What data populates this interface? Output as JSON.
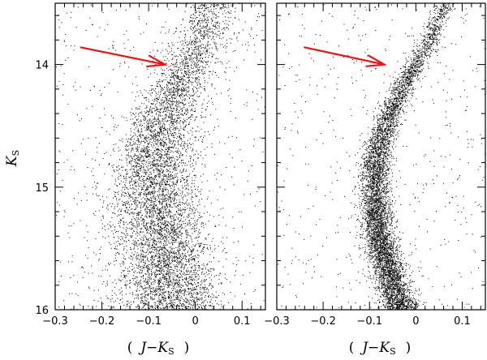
{
  "chart_data": [
    {
      "type": "scatter",
      "panel": "left",
      "title": "",
      "xlabel_parts": {
        "open": "(",
        "var_j": "J",
        "minus": "−",
        "var_k": "K",
        "sub": "S",
        "close": ")"
      },
      "ylabel_parts": {
        "var_k": "K",
        "sub": "S"
      },
      "xlim": [
        -0.3,
        0.15
      ],
      "ylim": [
        16,
        13.5
      ],
      "y_inverted": true,
      "x_ticks": [
        "−0.3",
        "−0.2",
        "−0.1",
        "0",
        "0.1"
      ],
      "y_ticks": [
        "14",
        "15",
        "16"
      ],
      "grid": false,
      "annotation": {
        "type": "arrow",
        "color": "#ee1111",
        "from": [
          -0.245,
          13.86
        ],
        "to": [
          -0.065,
          14.0
        ]
      },
      "sequence": [
        {
          "y": 13.5,
          "x": 0.04,
          "sd": 0.025
        },
        {
          "y": 13.8,
          "x": 0.015,
          "sd": 0.028
        },
        {
          "y": 14.0,
          "x": -0.015,
          "sd": 0.03
        },
        {
          "y": 14.2,
          "x": -0.04,
          "sd": 0.033
        },
        {
          "y": 14.4,
          "x": -0.062,
          "sd": 0.037
        },
        {
          "y": 14.6,
          "x": -0.08,
          "sd": 0.04
        },
        {
          "y": 14.8,
          "x": -0.085,
          "sd": 0.043
        },
        {
          "y": 15.0,
          "x": -0.085,
          "sd": 0.045
        },
        {
          "y": 15.2,
          "x": -0.08,
          "sd": 0.047
        },
        {
          "y": 15.4,
          "x": -0.073,
          "sd": 0.05
        },
        {
          "y": 15.6,
          "x": -0.065,
          "sd": 0.052
        },
        {
          "y": 15.8,
          "x": -0.055,
          "sd": 0.055
        },
        {
          "y": 16.0,
          "x": -0.045,
          "sd": 0.058
        }
      ],
      "density": [
        {
          "y": 13.5,
          "w": 0.35
        },
        {
          "y": 14.0,
          "w": 0.6
        },
        {
          "y": 14.5,
          "w": 0.9
        },
        {
          "y": 15.0,
          "w": 1.15
        },
        {
          "y": 15.5,
          "w": 1.3
        },
        {
          "y": 16.0,
          "w": 1.4
        }
      ],
      "n_points": 7000,
      "field_fraction": 0.06
    },
    {
      "type": "scatter",
      "panel": "right",
      "title": "",
      "xlabel_parts": {
        "open": "(",
        "var_j": "J",
        "minus": "−",
        "var_k": "K",
        "sub": "S",
        "close": ")"
      },
      "xlim": [
        -0.3,
        0.15
      ],
      "ylim": [
        16,
        13.5
      ],
      "y_inverted": true,
      "x_ticks": [
        "−0.3",
        "−0.2",
        "−0.1",
        "0",
        "0.1"
      ],
      "grid": false,
      "annotation": {
        "type": "arrow",
        "color": "#ee1111",
        "from": [
          -0.24,
          13.86
        ],
        "to": [
          -0.068,
          14.0
        ]
      },
      "sequence": [
        {
          "y": 13.5,
          "x": 0.065,
          "sd": 0.01
        },
        {
          "y": 13.8,
          "x": 0.03,
          "sd": 0.011
        },
        {
          "y": 14.0,
          "x": 0.0,
          "sd": 0.012
        },
        {
          "y": 14.2,
          "x": -0.03,
          "sd": 0.013
        },
        {
          "y": 14.4,
          "x": -0.055,
          "sd": 0.014
        },
        {
          "y": 14.6,
          "x": -0.075,
          "sd": 0.015
        },
        {
          "y": 14.8,
          "x": -0.085,
          "sd": 0.016
        },
        {
          "y": 15.0,
          "x": -0.088,
          "sd": 0.016
        },
        {
          "y": 15.2,
          "x": -0.085,
          "sd": 0.017
        },
        {
          "y": 15.4,
          "x": -0.078,
          "sd": 0.017
        },
        {
          "y": 15.6,
          "x": -0.065,
          "sd": 0.018
        },
        {
          "y": 15.8,
          "x": -0.048,
          "sd": 0.019
        },
        {
          "y": 16.0,
          "x": -0.03,
          "sd": 0.02
        }
      ],
      "density": [
        {
          "y": 13.5,
          "w": 0.3
        },
        {
          "y": 14.0,
          "w": 0.5
        },
        {
          "y": 14.5,
          "w": 0.8
        },
        {
          "y": 15.0,
          "w": 1.1
        },
        {
          "y": 15.5,
          "w": 1.3
        },
        {
          "y": 16.0,
          "w": 1.45
        }
      ],
      "n_points": 7000,
      "field_fraction": 0.05
    }
  ]
}
